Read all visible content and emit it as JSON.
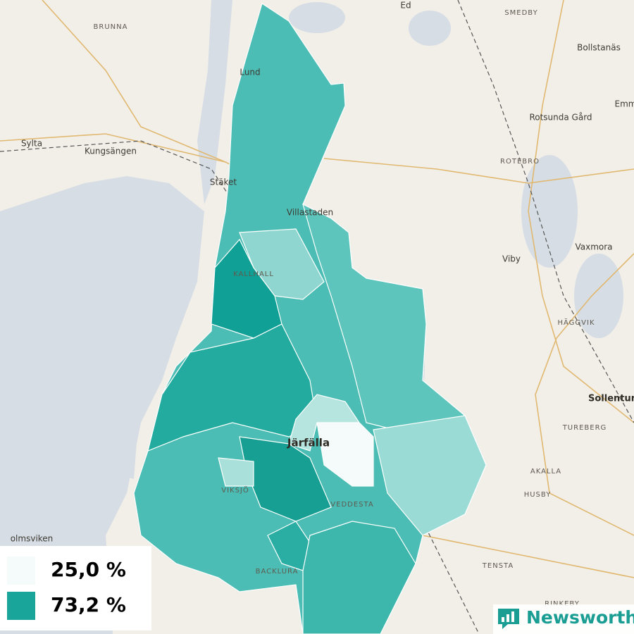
{
  "map": {
    "places": [
      "BRUNNA",
      "Lund",
      "Sylta",
      "Kungsängen",
      "Stäket",
      "Villastaden",
      "KALLHALL",
      "Ed",
      "SMEDBY",
      "Bollstanäs",
      "Emm",
      "Rotsunda Gård",
      "ROTEBRO",
      "Vaxmora",
      "Viby",
      "HÄGGVIK",
      "Sollentun",
      "TUREBERG",
      "AKALLA",
      "HUSBY",
      "TENSTA",
      "RINKEBY",
      "Järfälla",
      "VIKSJÖ",
      "VEDDESTA",
      "BACKLURA",
      "olmsviken"
    ]
  },
  "legend": {
    "items": [
      {
        "label": "25,0 %",
        "color": "#f4fbfa"
      },
      {
        "label": "73,2 %",
        "color": "#1aa59a"
      }
    ]
  },
  "brand": "Newsworthy"
}
